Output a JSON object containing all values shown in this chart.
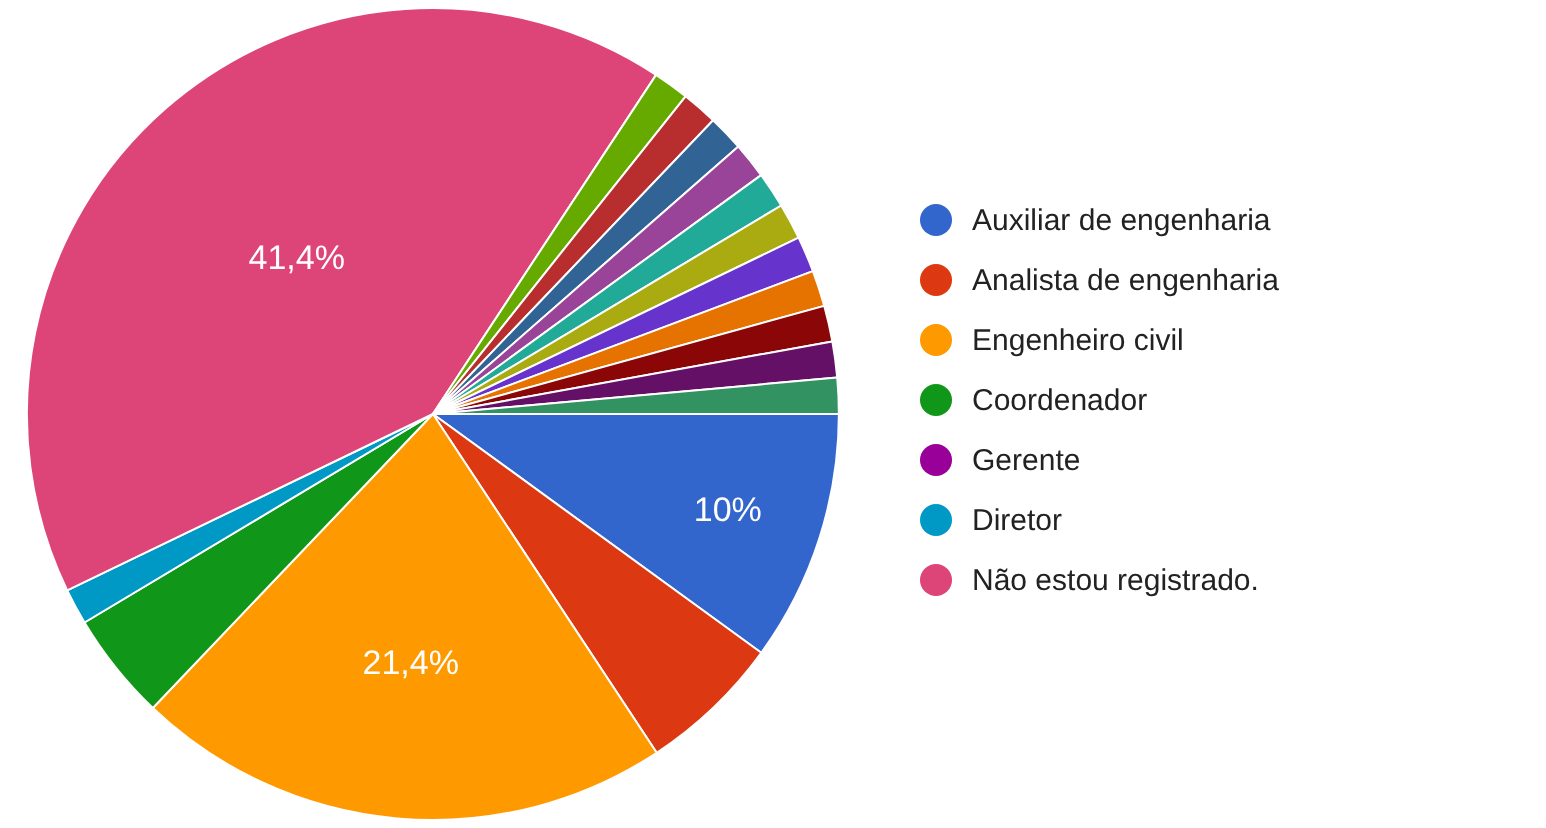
{
  "chart_data": {
    "type": "pie",
    "categories": [
      "Auxiliar de engenharia",
      "Analista de engenharia",
      "Engenheiro civil",
      "Coordenador",
      "Gerente",
      "Diretor",
      "Não estou registrado.",
      null,
      null,
      null,
      null,
      null,
      null,
      null,
      null,
      null,
      null,
      null
    ],
    "values": [
      10,
      5.7,
      21.4,
      4.3,
      0,
      1.43,
      41.4,
      1.43,
      1.43,
      1.43,
      1.43,
      1.43,
      1.43,
      1.43,
      1.43,
      1.43,
      1.43,
      1.43
    ],
    "colors": [
      "#3366cc",
      "#dc3912",
      "#ff9900",
      "#109618",
      "#990099",
      "#0099c6",
      "#dd4477",
      "#66aa00",
      "#b82e2e",
      "#316395",
      "#994499",
      "#22aa99",
      "#aaaa11",
      "#6633cc",
      "#e67300",
      "#8b0707",
      "#651067",
      "#329262"
    ],
    "value_labels": [
      "10%",
      null,
      "21,4%",
      null,
      null,
      null,
      "41,4%",
      null,
      null,
      null,
      null,
      null,
      null,
      null,
      null,
      null,
      null,
      null
    ],
    "legend": "right"
  }
}
